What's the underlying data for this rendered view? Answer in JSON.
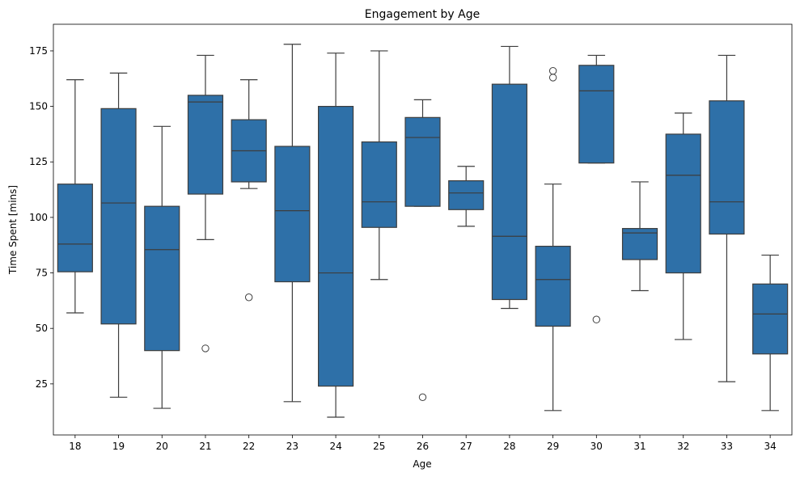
{
  "chart_data": {
    "type": "box",
    "title": "Engagement by Age",
    "xlabel": "Age",
    "ylabel": "Time Spent [mins]",
    "ylim": [
      2,
      187
    ],
    "y_ticks": [
      25,
      50,
      75,
      100,
      125,
      150,
      175
    ],
    "grid": false,
    "box_color": "#2e70a8",
    "line_color": "#3d3d3d",
    "categories": [
      "18",
      "19",
      "20",
      "21",
      "22",
      "23",
      "24",
      "25",
      "26",
      "27",
      "28",
      "29",
      "30",
      "31",
      "32",
      "33",
      "34"
    ],
    "boxes": [
      {
        "category": "18",
        "whislo": 57,
        "q1": 75.5,
        "med": 88,
        "q3": 115,
        "whishi": 162,
        "fliers": []
      },
      {
        "category": "19",
        "whislo": 19,
        "q1": 52,
        "med": 106.5,
        "q3": 149,
        "whishi": 165,
        "fliers": []
      },
      {
        "category": "20",
        "whislo": 14,
        "q1": 40,
        "med": 85.5,
        "q3": 105,
        "whishi": 141,
        "fliers": []
      },
      {
        "category": "21",
        "whislo": 90,
        "q1": 110.5,
        "med": 152,
        "q3": 155,
        "whishi": 173,
        "fliers": [
          41
        ]
      },
      {
        "category": "22",
        "whislo": 113,
        "q1": 116,
        "med": 130,
        "q3": 144,
        "whishi": 162,
        "fliers": [
          64
        ]
      },
      {
        "category": "23",
        "whislo": 17,
        "q1": 71,
        "med": 103,
        "q3": 132,
        "whishi": 178,
        "fliers": []
      },
      {
        "category": "24",
        "whislo": 10,
        "q1": 24,
        "med": 75,
        "q3": 150,
        "whishi": 174,
        "fliers": []
      },
      {
        "category": "25",
        "whislo": 72,
        "q1": 95.5,
        "med": 107,
        "q3": 134,
        "whishi": 175,
        "fliers": []
      },
      {
        "category": "26",
        "whislo": 105,
        "q1": 105,
        "med": 136,
        "q3": 145,
        "whishi": 153,
        "fliers": [
          19
        ]
      },
      {
        "category": "27",
        "whislo": 96,
        "q1": 103.5,
        "med": 111,
        "q3": 116.5,
        "whishi": 123,
        "fliers": []
      },
      {
        "category": "28",
        "whislo": 59,
        "q1": 63,
        "med": 91.5,
        "q3": 160,
        "whishi": 177,
        "fliers": []
      },
      {
        "category": "29",
        "whislo": 13,
        "q1": 51,
        "med": 72,
        "q3": 87,
        "whishi": 115,
        "fliers": [
          163,
          166
        ]
      },
      {
        "category": "30",
        "whislo": 124.5,
        "q1": 124.5,
        "med": 157,
        "q3": 168.5,
        "whishi": 173,
        "fliers": [
          54
        ]
      },
      {
        "category": "31",
        "whislo": 67,
        "q1": 81,
        "med": 93,
        "q3": 95,
        "whishi": 116,
        "fliers": []
      },
      {
        "category": "32",
        "whislo": 45,
        "q1": 75,
        "med": 119,
        "q3": 137.5,
        "whishi": 147,
        "fliers": []
      },
      {
        "category": "33",
        "whislo": 26,
        "q1": 92.5,
        "med": 107,
        "q3": 152.5,
        "whishi": 173,
        "fliers": []
      },
      {
        "category": "34",
        "whislo": 13,
        "q1": 38.5,
        "med": 56.5,
        "q3": 70,
        "whishi": 83,
        "fliers": []
      }
    ]
  }
}
